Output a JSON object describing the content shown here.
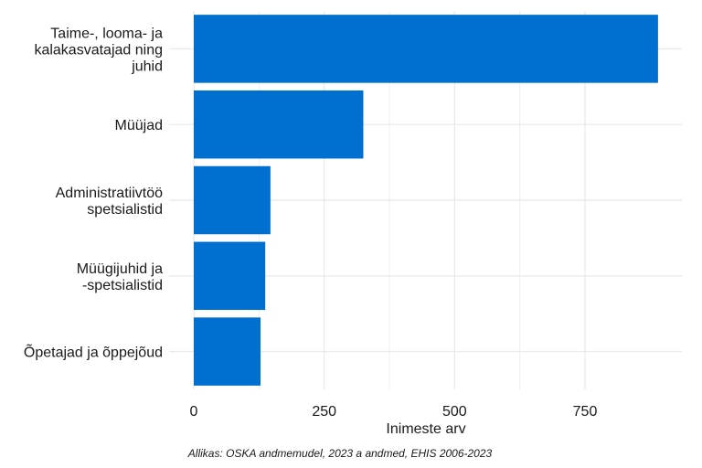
{
  "chart_data": {
    "type": "bar",
    "orientation": "horizontal",
    "categories": [
      "Taime-, looma- ja\nkalakasvatajad ning\njuhid",
      "Müüjad",
      "Administratiivtöö\nspetsialistid",
      "Müügijuhid ja\n-spetsialistid",
      "Õpetajad ja õppejõud"
    ],
    "values": [
      890,
      325,
      147,
      137,
      128
    ],
    "xlabel": "Inimeste arv",
    "ylabel": "",
    "title": "",
    "xlim": [
      0,
      940
    ],
    "xticks": [
      0,
      250,
      500,
      750
    ],
    "grid": true,
    "bar_color": "#0070d0",
    "grid_color": "#ebebeb"
  },
  "caption": "Allikas: OSKA andmemudel, 2023 a andmed, EHIS 2006-2023"
}
